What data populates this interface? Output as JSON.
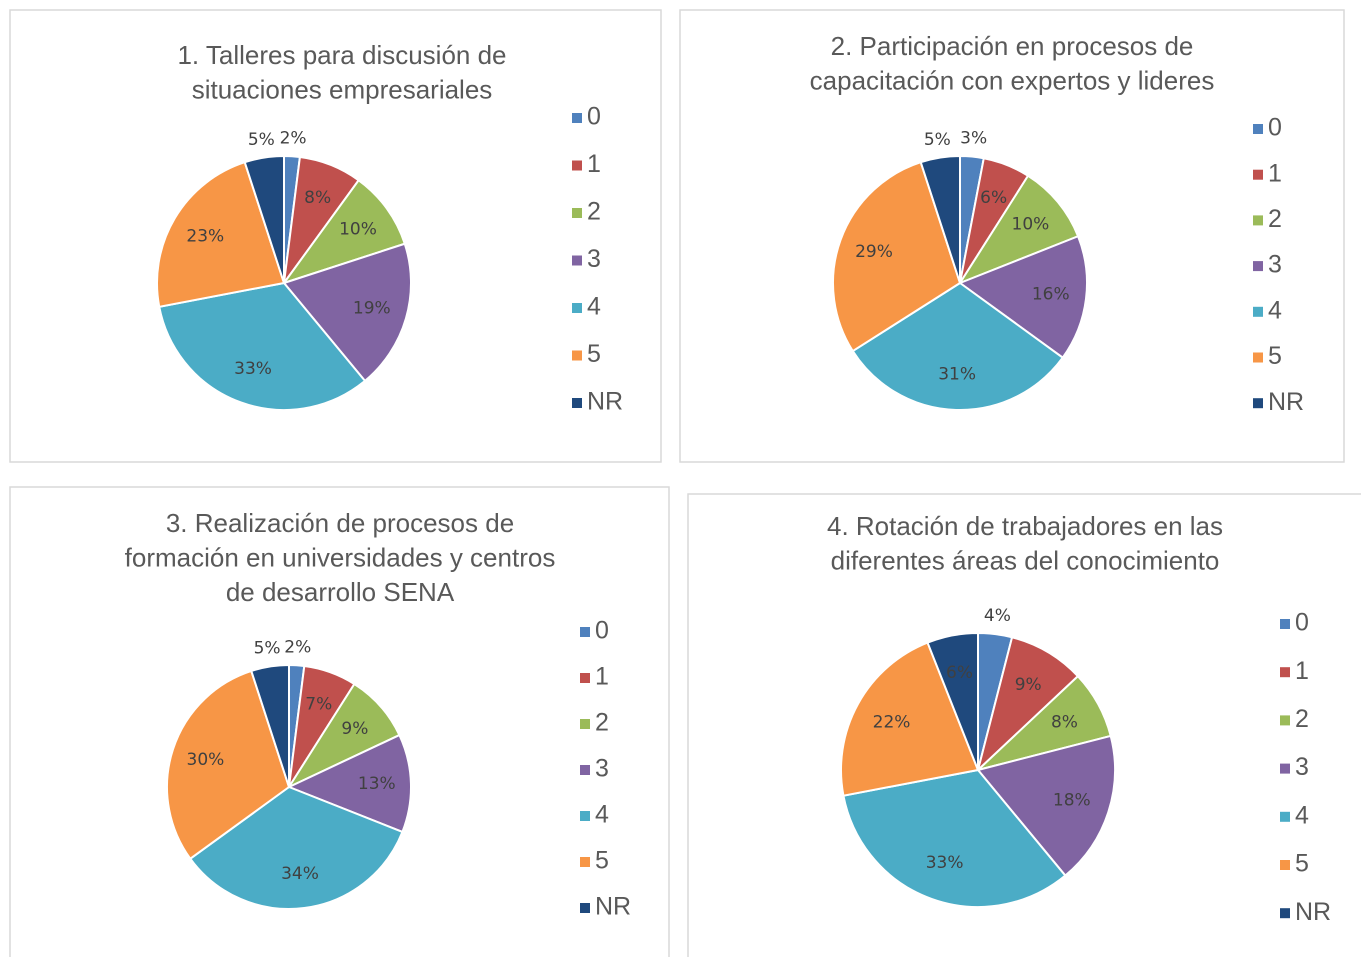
{
  "chart_data": [
    {
      "type": "pie",
      "title": [
        "1. Talleres para discusión de",
        "situaciones empresariales"
      ],
      "categories": [
        "0",
        "1",
        "2",
        "3",
        "4",
        "5",
        "NR"
      ],
      "values": [
        2,
        8,
        10,
        19,
        33,
        23,
        5
      ],
      "value_labels": [
        "2%",
        "8%",
        "10%",
        "19%",
        "33%",
        "23%",
        "5%"
      ],
      "colors": [
        "#4f81bd",
        "#c0504d",
        "#9bbb59",
        "#8064a2",
        "#4bacc6",
        "#f79646",
        "#1f497d"
      ]
    },
    {
      "type": "pie",
      "title": [
        "2. Participación en procesos de",
        "capacitación con expertos y lideres"
      ],
      "categories": [
        "0",
        "1",
        "2",
        "3",
        "4",
        "5",
        "NR"
      ],
      "values": [
        3,
        6,
        10,
        16,
        31,
        29,
        5
      ],
      "value_labels": [
        "3%",
        "6%",
        "10%",
        "16%",
        "31%",
        "29%",
        "5%"
      ],
      "colors": [
        "#4f81bd",
        "#c0504d",
        "#9bbb59",
        "#8064a2",
        "#4bacc6",
        "#f79646",
        "#1f497d"
      ]
    },
    {
      "type": "pie",
      "title": [
        "3. Realización de procesos de",
        "formación en universidades y centros",
        "de desarrollo SENA"
      ],
      "categories": [
        "0",
        "1",
        "2",
        "3",
        "4",
        "5",
        "NR"
      ],
      "values": [
        2,
        7,
        9,
        13,
        34,
        30,
        5
      ],
      "value_labels": [
        "2%",
        "7%",
        "9%",
        "13%",
        "34%",
        "30%",
        "5%"
      ],
      "colors": [
        "#4f81bd",
        "#c0504d",
        "#9bbb59",
        "#8064a2",
        "#4bacc6",
        "#f79646",
        "#1f497d"
      ]
    },
    {
      "type": "pie",
      "title": [
        "4. Rotación de trabajadores en las",
        "diferentes áreas del conocimiento"
      ],
      "categories": [
        "0",
        "1",
        "2",
        "3",
        "4",
        "5",
        "NR"
      ],
      "values": [
        4,
        9,
        8,
        18,
        33,
        22,
        6
      ],
      "value_labels": [
        "4%",
        "9%",
        "8%",
        "18%",
        "33%",
        "22%",
        "6%"
      ],
      "colors": [
        "#4f81bd",
        "#c0504d",
        "#9bbb59",
        "#8064a2",
        "#4bacc6",
        "#f79646",
        "#1f497d"
      ]
    }
  ]
}
